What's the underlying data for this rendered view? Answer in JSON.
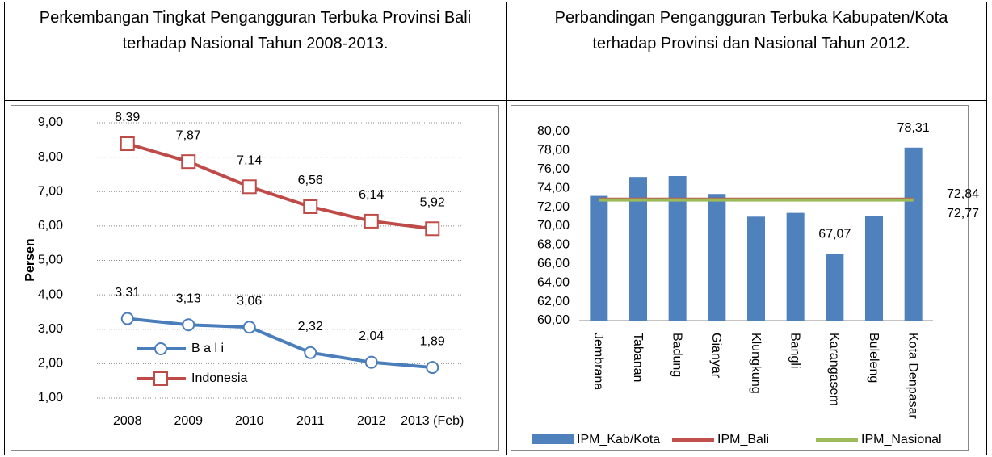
{
  "table": {
    "headers": [
      "Perkembangan Tingkat Pengangguran Terbuka Provinsi Bali terhadap Nasional Tahun 2008-2013.",
      "Perbandingan Pengangguran Terbuka Kabupaten/Kota terhadap Provinsi dan Nasional Tahun 2012."
    ]
  },
  "chart_data": [
    {
      "type": "line",
      "y_label": "Persen",
      "categories": [
        "2008",
        "2009",
        "2010",
        "2011",
        "2012",
        "2013 (Feb)"
      ],
      "series": [
        {
          "name": "B a l i",
          "color": "#4a7ebb",
          "marker": "circle",
          "values": [
            3.31,
            3.13,
            3.06,
            2.32,
            2.04,
            1.89
          ],
          "value_labels": [
            "3,31",
            "3,13",
            "3,06",
            "2,32",
            "2,04",
            "1,89"
          ]
        },
        {
          "name": "Indonesia",
          "color": "#be4b48",
          "marker": "square",
          "values": [
            8.39,
            7.87,
            7.14,
            6.56,
            6.14,
            5.92
          ],
          "value_labels": [
            "8,39",
            "7,87",
            "7,14",
            "6,56",
            "6,14",
            "5,92"
          ]
        }
      ],
      "ylim": [
        1,
        9
      ],
      "yticks": [
        {
          "value": 1,
          "label": "1,00"
        },
        {
          "value": 2,
          "label": "2,00"
        },
        {
          "value": 3,
          "label": "3,00"
        },
        {
          "value": 4,
          "label": "4,00"
        },
        {
          "value": 5,
          "label": "5,00"
        },
        {
          "value": 6,
          "label": "6,00"
        },
        {
          "value": 7,
          "label": "7,00"
        },
        {
          "value": 8,
          "label": "8,00"
        },
        {
          "value": 9,
          "label": "9,00"
        }
      ],
      "grid": true
    },
    {
      "type": "bar",
      "categories": [
        "Jembrana",
        "Tabanan",
        "Badung",
        "Gianyar",
        "Klungkung",
        "Bangli",
        "Karangasem",
        "Buleleng",
        "Kota Denpasar"
      ],
      "series": [
        {
          "name": "IPM_Kab/Kota",
          "color": "#4f81bd",
          "values": [
            73.2,
            75.2,
            75.3,
            73.4,
            71.0,
            71.4,
            67.07,
            71.1,
            78.31
          ],
          "value_labels": [
            null,
            null,
            null,
            null,
            null,
            null,
            "67,07",
            null,
            "78,31"
          ]
        },
        {
          "name": "IPM_Bali",
          "color": "#c0504d",
          "value": 72.84,
          "value_label": "72,84"
        },
        {
          "name": "IPM_Nasional",
          "color": "#9bbb59",
          "value": 72.77,
          "value_label": "72,77"
        }
      ],
      "ylim": [
        60,
        80
      ],
      "yticks": [
        {
          "value": 60,
          "label": "60,00"
        },
        {
          "value": 62,
          "label": "62,00"
        },
        {
          "value": 64,
          "label": "64,00"
        },
        {
          "value": 66,
          "label": "66,00"
        },
        {
          "value": 68,
          "label": "68,00"
        },
        {
          "value": 70,
          "label": "70,00"
        },
        {
          "value": 72,
          "label": "72,00"
        },
        {
          "value": 74,
          "label": "74,00"
        },
        {
          "value": 76,
          "label": "76,00"
        },
        {
          "value": 78,
          "label": "78,00"
        },
        {
          "value": 80,
          "label": "80,00"
        }
      ]
    }
  ]
}
